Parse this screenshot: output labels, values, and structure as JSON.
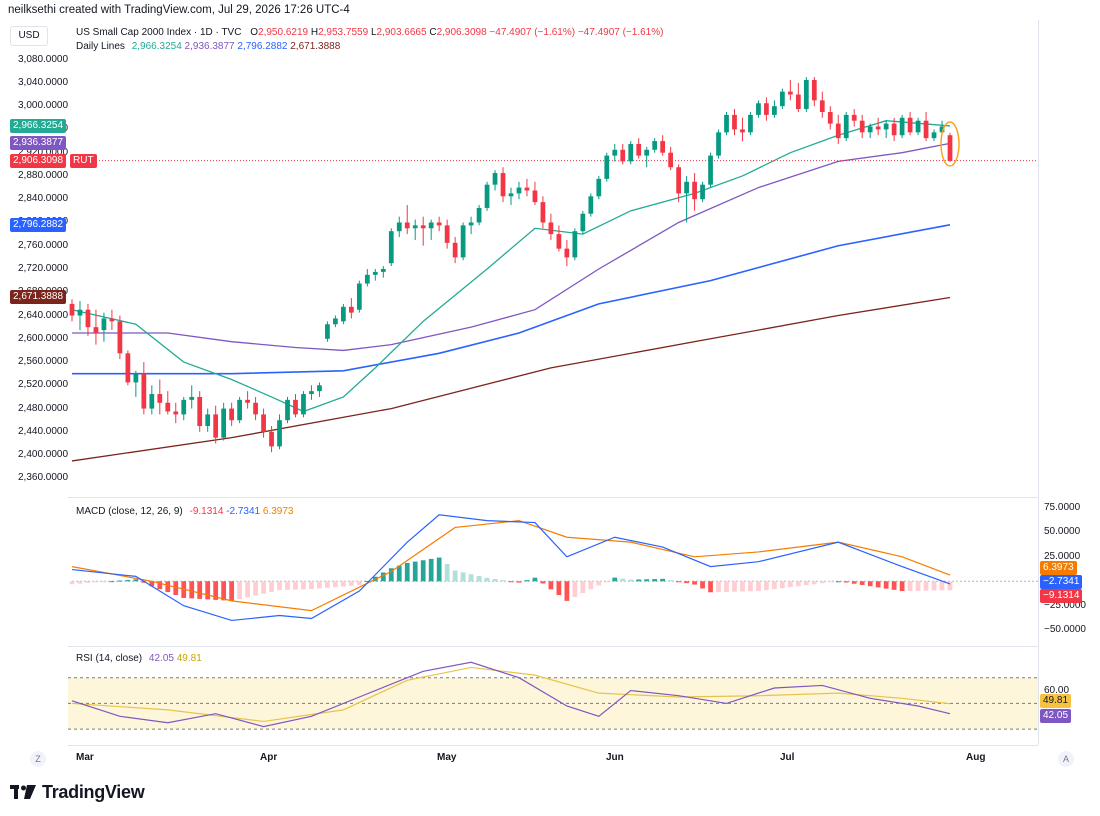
{
  "header": {
    "creator": "neilksethi created with TradingView.com, Jul 29, 2026 17:26 UTC-4",
    "currency_button": "USD",
    "symbol_title": "US Small Cap 2000 Index · 1D · TVC",
    "ohlc": {
      "o_label": "O",
      "o": "2,950.6219",
      "h_label": "H",
      "h": "2,953.7559",
      "l_label": "L",
      "l": "2,903.6665",
      "c_label": "C",
      "c": "2,906.3098",
      "change": "−47.4907 (−1.61%)",
      "change2": "−47.4907 (−1.61%)"
    },
    "daily_lines_label": "Daily Lines",
    "daily_lines_values": [
      "2,966.3254",
      "2,936.3877",
      "2,796.2882",
      "2,671.3888"
    ]
  },
  "price_axis": {
    "ticks": [
      "3,080.0000",
      "3,040.0000",
      "3,000.0000",
      "2,960.0000",
      "2,920.0000",
      "2,880.0000",
      "2,840.0000",
      "2,800.0000",
      "2,760.0000",
      "2,720.0000",
      "2,680.0000",
      "2,640.0000",
      "2,600.0000",
      "2,560.0000",
      "2,520.0000",
      "2,480.0000",
      "2,440.0000",
      "2,400.0000",
      "2,360.0000"
    ],
    "tags": [
      {
        "text": "2,966.3254",
        "color": "#22ab94"
      },
      {
        "text": "2,936.3877",
        "color": "#7e57c2"
      },
      {
        "text": "2,906.3098",
        "color": "#f23645"
      },
      {
        "text": "RUT",
        "color": "#f23645"
      },
      {
        "text": "2,796.2882",
        "color": "#2962ff"
      },
      {
        "text": "2,671.3888",
        "color": "#7b241c"
      }
    ]
  },
  "macd": {
    "label": "MACD (close, 12, 26, 9)",
    "values": [
      "-9.1314",
      "-2.7341",
      "6.3973"
    ],
    "axis_ticks": [
      "75.0000",
      "50.0000",
      "25.0000",
      "−25.0000",
      "−50.0000"
    ],
    "tags": [
      {
        "text": "6.3973",
        "color": "#f57c00"
      },
      {
        "text": "−2.7341",
        "color": "#2962ff"
      },
      {
        "text": "−9.1314",
        "color": "#f23645"
      }
    ]
  },
  "rsi": {
    "label": "RSI (14, close)",
    "values": [
      "42.05",
      "49.81"
    ],
    "axis_ticks": [
      "60.00"
    ],
    "tags": [
      {
        "text": "49.81",
        "color": "#f5c242"
      },
      {
        "text": "42.05",
        "color": "#7e57c2"
      }
    ]
  },
  "x_axis": {
    "labels": [
      "Mar",
      "Apr",
      "May",
      "Jun",
      "Jul",
      "Aug"
    ]
  },
  "corner_buttons": {
    "left": "Z",
    "right": "A"
  },
  "footer": {
    "brand": "TradingView"
  },
  "colors": {
    "up": "#089981",
    "down": "#f23645",
    "ma20": "#22ab94",
    "ma50": "#7e57c2",
    "ma100": "#2962ff",
    "ma200": "#7b241c",
    "macd": "#2962ff",
    "signal": "#f57c00",
    "rsi": "#7e57c2",
    "rsi_ma": "#f5c242"
  },
  "chart_data": [
    {
      "type": "candlestick",
      "title": "US Small Cap 2000 Index · 1D · TVC",
      "ylim": [
        2340,
        3100
      ],
      "x_labels": [
        "Mar",
        "Apr",
        "May",
        "Jun",
        "Jul",
        "Aug"
      ],
      "candles_ohlc": [
        [
          2660,
          2668,
          2630,
          2640
        ],
        [
          2640,
          2665,
          2615,
          2650
        ],
        [
          2650,
          2660,
          2605,
          2620
        ],
        [
          2620,
          2650,
          2590,
          2610
        ],
        [
          2615,
          2645,
          2595,
          2635
        ],
        [
          2635,
          2650,
          2615,
          2630
        ],
        [
          2630,
          2640,
          2565,
          2575
        ],
        [
          2575,
          2580,
          2520,
          2525
        ],
        [
          2525,
          2545,
          2500,
          2540
        ],
        [
          2540,
          2560,
          2470,
          2480
        ],
        [
          2480,
          2520,
          2470,
          2505
        ],
        [
          2505,
          2530,
          2470,
          2490
        ],
        [
          2490,
          2510,
          2470,
          2475
        ],
        [
          2475,
          2490,
          2455,
          2470
        ],
        [
          2470,
          2500,
          2460,
          2495
        ],
        [
          2495,
          2520,
          2480,
          2500
        ],
        [
          2500,
          2510,
          2440,
          2450
        ],
        [
          2450,
          2480,
          2440,
          2470
        ],
        [
          2470,
          2485,
          2420,
          2430
        ],
        [
          2430,
          2490,
          2425,
          2480
        ],
        [
          2480,
          2490,
          2450,
          2460
        ],
        [
          2460,
          2500,
          2455,
          2495
        ],
        [
          2495,
          2510,
          2480,
          2490
        ],
        [
          2490,
          2500,
          2460,
          2470
        ],
        [
          2470,
          2480,
          2430,
          2440
        ],
        [
          2440,
          2450,
          2405,
          2415
        ],
        [
          2415,
          2470,
          2410,
          2460
        ],
        [
          2460,
          2500,
          2455,
          2495
        ],
        [
          2495,
          2505,
          2465,
          2470
        ],
        [
          2470,
          2510,
          2465,
          2505
        ],
        [
          2505,
          2520,
          2495,
          2510
        ],
        [
          2510,
          2525,
          2500,
          2520
        ],
        [
          2600,
          2630,
          2595,
          2625
        ],
        [
          2625,
          2640,
          2620,
          2635
        ],
        [
          2630,
          2660,
          2625,
          2655
        ],
        [
          2655,
          2670,
          2635,
          2645
        ],
        [
          2650,
          2700,
          2645,
          2695
        ],
        [
          2695,
          2720,
          2690,
          2710
        ],
        [
          2710,
          2720,
          2700,
          2715
        ],
        [
          2715,
          2725,
          2705,
          2720
        ],
        [
          2730,
          2790,
          2725,
          2785
        ],
        [
          2785,
          2810,
          2775,
          2800
        ],
        [
          2800,
          2830,
          2780,
          2790
        ],
        [
          2790,
          2805,
          2770,
          2795
        ],
        [
          2795,
          2810,
          2760,
          2790
        ],
        [
          2790,
          2805,
          2770,
          2800
        ],
        [
          2800,
          2810,
          2785,
          2795
        ],
        [
          2795,
          2805,
          2755,
          2765
        ],
        [
          2765,
          2775,
          2730,
          2740
        ],
        [
          2740,
          2800,
          2735,
          2795
        ],
        [
          2795,
          2810,
          2780,
          2800
        ],
        [
          2800,
          2830,
          2795,
          2825
        ],
        [
          2825,
          2870,
          2820,
          2865
        ],
        [
          2865,
          2890,
          2855,
          2885
        ],
        [
          2885,
          2895,
          2835,
          2845
        ],
        [
          2845,
          2860,
          2830,
          2850
        ],
        [
          2850,
          2870,
          2840,
          2860
        ],
        [
          2860,
          2875,
          2845,
          2855
        ],
        [
          2855,
          2870,
          2830,
          2835
        ],
        [
          2835,
          2845,
          2790,
          2800
        ],
        [
          2800,
          2815,
          2770,
          2780
        ],
        [
          2780,
          2795,
          2750,
          2755
        ],
        [
          2755,
          2770,
          2725,
          2740
        ],
        [
          2740,
          2790,
          2735,
          2785
        ],
        [
          2785,
          2820,
          2780,
          2815
        ],
        [
          2815,
          2850,
          2810,
          2845
        ],
        [
          2845,
          2880,
          2840,
          2875
        ],
        [
          2875,
          2920,
          2870,
          2915
        ],
        [
          2915,
          2935,
          2905,
          2925
        ],
        [
          2925,
          2935,
          2900,
          2905
        ],
        [
          2905,
          2940,
          2900,
          2935
        ],
        [
          2935,
          2945,
          2910,
          2915
        ],
        [
          2915,
          2930,
          2895,
          2925
        ],
        [
          2925,
          2945,
          2920,
          2940
        ],
        [
          2940,
          2950,
          2915,
          2920
        ],
        [
          2920,
          2930,
          2890,
          2895
        ],
        [
          2895,
          2900,
          2835,
          2850
        ],
        [
          2850,
          2880,
          2800,
          2870
        ],
        [
          2870,
          2885,
          2820,
          2840
        ],
        [
          2840,
          2870,
          2835,
          2865
        ],
        [
          2865,
          2920,
          2860,
          2915
        ],
        [
          2915,
          2960,
          2910,
          2955
        ],
        [
          2955,
          2990,
          2950,
          2985
        ],
        [
          2985,
          2995,
          2950,
          2960
        ],
        [
          2960,
          2980,
          2940,
          2955
        ],
        [
          2955,
          2990,
          2950,
          2985
        ],
        [
          2985,
          3010,
          2980,
          3005
        ],
        [
          3005,
          3015,
          2975,
          2985
        ],
        [
          2985,
          3010,
          2980,
          3000
        ],
        [
          3000,
          3030,
          2995,
          3025
        ],
        [
          3025,
          3045,
          3010,
          3020
        ],
        [
          3020,
          3040,
          2990,
          2995
        ],
        [
          2995,
          3050,
          2990,
          3045
        ],
        [
          3045,
          3050,
          3000,
          3010
        ],
        [
          3010,
          3025,
          2980,
          2990
        ],
        [
          2990,
          3000,
          2960,
          2970
        ],
        [
          2970,
          2985,
          2935,
          2945
        ],
        [
          2945,
          2990,
          2940,
          2985
        ],
        [
          2985,
          2995,
          2965,
          2975
        ],
        [
          2975,
          2985,
          2945,
          2955
        ],
        [
          2955,
          2970,
          2945,
          2965
        ],
        [
          2965,
          2980,
          2950,
          2960
        ],
        [
          2960,
          2975,
          2945,
          2970
        ],
        [
          2970,
          2980,
          2940,
          2950
        ],
        [
          2950,
          2985,
          2945,
          2980
        ],
        [
          2980,
          2990,
          2950,
          2955
        ],
        [
          2955,
          2980,
          2950,
          2975
        ],
        [
          2975,
          2990,
          2940,
          2945
        ],
        [
          2945,
          2960,
          2940,
          2955
        ],
        [
          2955,
          2975,
          2950,
          2965
        ],
        [
          2950,
          2954,
          2904,
          2906
        ]
      ],
      "ma20_points": [
        [
          0,
          2650
        ],
        [
          8,
          2625
        ],
        [
          14,
          2560
        ],
        [
          20,
          2530
        ],
        [
          25,
          2500
        ],
        [
          29,
          2475
        ],
        [
          34,
          2500
        ],
        [
          38,
          2550
        ],
        [
          44,
          2630
        ],
        [
          52,
          2720
        ],
        [
          58,
          2790
        ],
        [
          64,
          2780
        ],
        [
          70,
          2820
        ],
        [
          78,
          2850
        ],
        [
          84,
          2880
        ],
        [
          90,
          2920
        ],
        [
          96,
          2950
        ],
        [
          102,
          2975
        ],
        [
          110,
          2966
        ]
      ],
      "ma50_points": [
        [
          0,
          2610
        ],
        [
          12,
          2610
        ],
        [
          20,
          2595
        ],
        [
          28,
          2585
        ],
        [
          34,
          2580
        ],
        [
          40,
          2590
        ],
        [
          50,
          2620
        ],
        [
          58,
          2650
        ],
        [
          66,
          2720
        ],
        [
          76,
          2800
        ],
        [
          86,
          2860
        ],
        [
          96,
          2905
        ],
        [
          104,
          2920
        ],
        [
          110,
          2936
        ]
      ],
      "ma100_points": [
        [
          0,
          2540
        ],
        [
          20,
          2540
        ],
        [
          34,
          2545
        ],
        [
          46,
          2575
        ],
        [
          56,
          2610
        ],
        [
          66,
          2660
        ],
        [
          80,
          2700
        ],
        [
          96,
          2760
        ],
        [
          110,
          2796
        ]
      ],
      "ma200_points": [
        [
          0,
          2390
        ],
        [
          20,
          2430
        ],
        [
          40,
          2480
        ],
        [
          60,
          2550
        ],
        [
          80,
          2600
        ],
        [
          96,
          2640
        ],
        [
          110,
          2671
        ]
      ],
      "last_close": 2906.3098
    },
    {
      "type": "line",
      "title": "MACD (close, 12, 26, 9)",
      "ylim": [
        -60,
        80
      ],
      "series": [
        {
          "name": "MACD",
          "points": [
            [
              0,
              12
            ],
            [
              8,
              5
            ],
            [
              14,
              -25
            ],
            [
              20,
              -40
            ],
            [
              26,
              -35
            ],
            [
              30,
              -38
            ],
            [
              36,
              -10
            ],
            [
              42,
              40
            ],
            [
              46,
              68
            ],
            [
              52,
              62
            ],
            [
              58,
              60
            ],
            [
              62,
              25
            ],
            [
              68,
              45
            ],
            [
              74,
              35
            ],
            [
              80,
              15
            ],
            [
              86,
              20
            ],
            [
              96,
              40
            ],
            [
              104,
              15
            ],
            [
              110,
              -2.7341
            ]
          ]
        },
        {
          "name": "Signal",
          "points": [
            [
              0,
              15
            ],
            [
              10,
              0
            ],
            [
              20,
              -20
            ],
            [
              30,
              -30
            ],
            [
              40,
              10
            ],
            [
              48,
              55
            ],
            [
              56,
              62
            ],
            [
              62,
              45
            ],
            [
              70,
              40
            ],
            [
              78,
              25
            ],
            [
              86,
              30
            ],
            [
              96,
              40
            ],
            [
              104,
              25
            ],
            [
              110,
              6.3973
            ]
          ]
        }
      ],
      "histogram_last": -9.1314
    },
    {
      "type": "line",
      "title": "RSI (14, close)",
      "ylim": [
        20,
        90
      ],
      "series": [
        {
          "name": "RSI",
          "points": [
            [
              0,
              52
            ],
            [
              6,
              40
            ],
            [
              12,
              35
            ],
            [
              18,
              42
            ],
            [
              24,
              32
            ],
            [
              30,
              40
            ],
            [
              36,
              55
            ],
            [
              44,
              75
            ],
            [
              50,
              82
            ],
            [
              56,
              70
            ],
            [
              62,
              48
            ],
            [
              66,
              40
            ],
            [
              70,
              60
            ],
            [
              76,
              56
            ],
            [
              82,
              50
            ],
            [
              88,
              62
            ],
            [
              94,
              64
            ],
            [
              100,
              54
            ],
            [
              106,
              48
            ],
            [
              110,
              42.05
            ]
          ]
        },
        {
          "name": "RSI MA",
          "points": [
            [
              0,
              50
            ],
            [
              12,
              45
            ],
            [
              24,
              36
            ],
            [
              34,
              45
            ],
            [
              42,
              68
            ],
            [
              50,
              78
            ],
            [
              58,
              72
            ],
            [
              66,
              58
            ],
            [
              76,
              55
            ],
            [
              86,
              56
            ],
            [
              96,
              58
            ],
            [
              104,
              54
            ],
            [
              110,
              49.81
            ]
          ]
        }
      ]
    }
  ]
}
